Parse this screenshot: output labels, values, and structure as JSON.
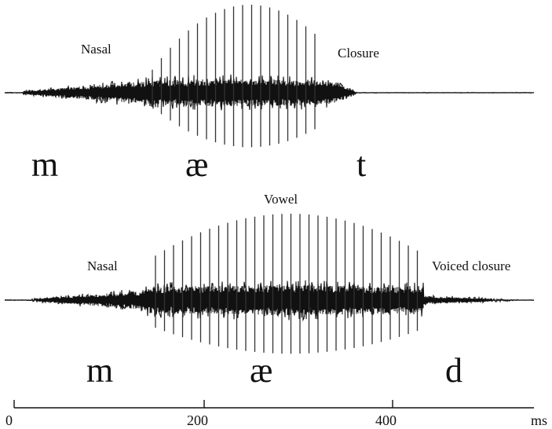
{
  "panels": [
    {
      "labels": {
        "onset": "Nasal",
        "coda": "Closure"
      },
      "phonemes": [
        "m",
        "æ",
        "t"
      ]
    },
    {
      "labels": {
        "nucleus": "Vowel",
        "onset": "Nasal",
        "coda": "Voiced closure"
      },
      "phonemes": [
        "m",
        "æ",
        "d"
      ]
    }
  ],
  "axis": {
    "ticks": [
      "0",
      "200",
      "400"
    ],
    "unit": "ms"
  },
  "colors": {
    "waveform": "#111111",
    "waveform_peak": "#333333",
    "background": "#ffffff"
  }
}
